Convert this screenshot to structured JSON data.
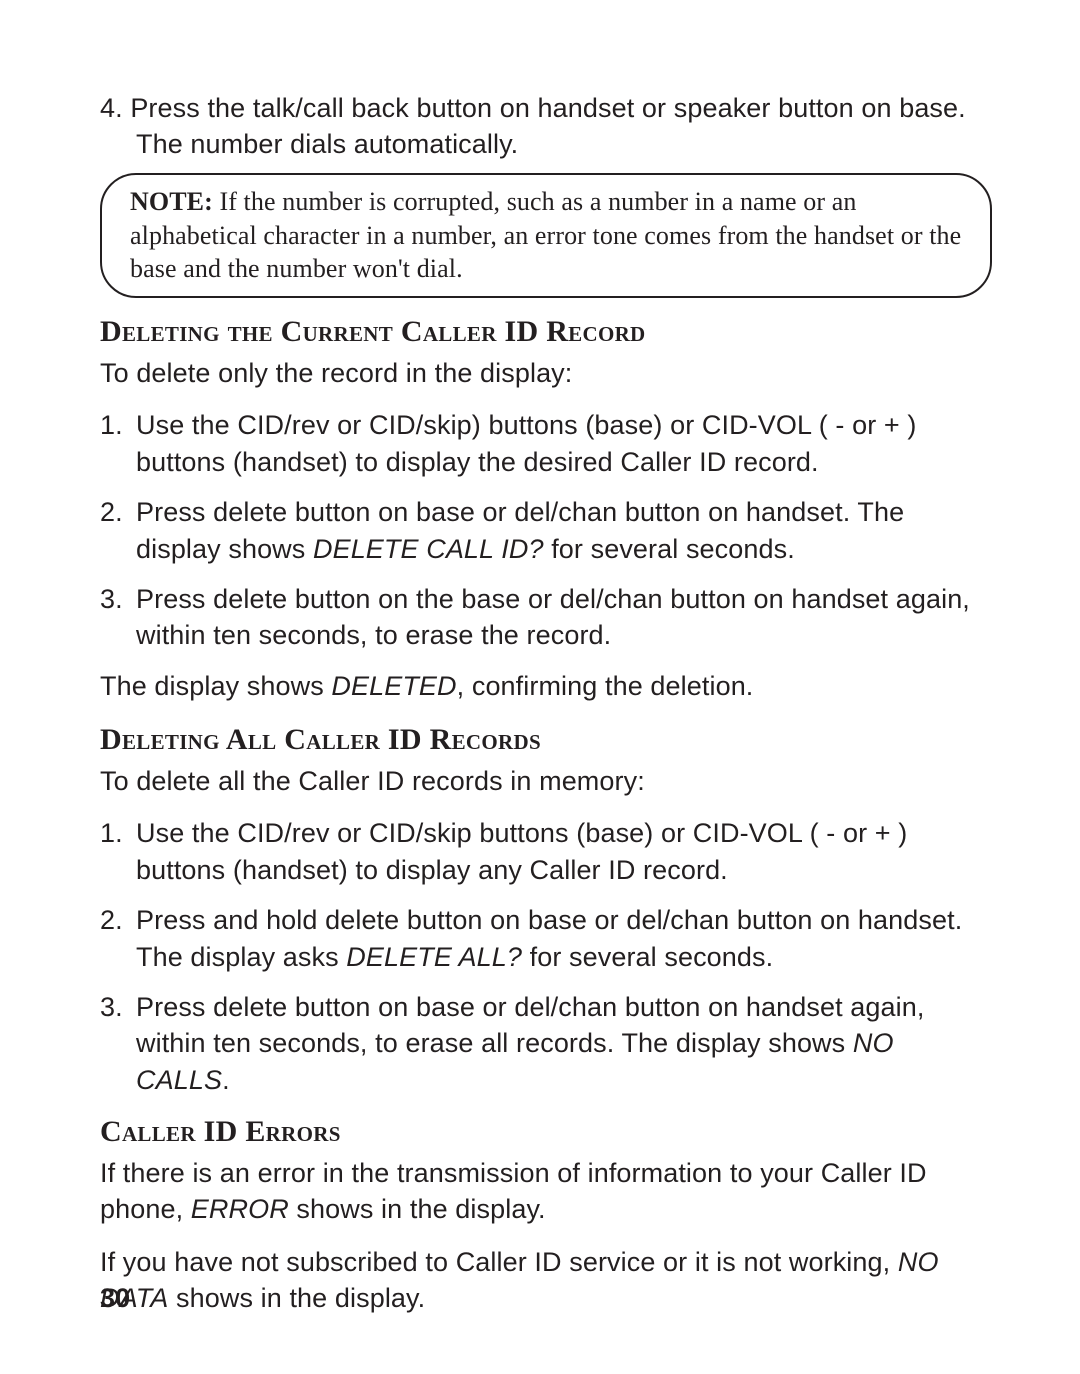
{
  "step4": {
    "num": "4.",
    "text": "Press the talk/call back button on handset or speaker button on base. The number dials automatically."
  },
  "note": {
    "label": "NOTE:",
    "text": " If the number is corrupted, such as a number in a name or an alphabetical character in a number, an error tone comes from the handset or the base and the number won't dial."
  },
  "sec1": {
    "heading": "Deleting the Current Caller ID Record",
    "intro": "To delete only the record in the display:",
    "s1": "Use the CID/rev or CID/skip) buttons (base) or CID-VOL ( - or + ) buttons (handset) to display the desired Caller ID record.",
    "s2a": "Press delete button on base or del/chan button on handset. The display shows ",
    "s2b": "DELETE CALL ID?",
    "s2c": " for several seconds.",
    "s3": "Press delete button on the base or del/chan button on handset again, within ten seconds, to erase the record.",
    "outro_a": "The display shows ",
    "outro_b": "DELETED",
    "outro_c": ", confirming the deletion."
  },
  "sec2": {
    "heading": "Deleting All Caller ID Records",
    "intro": "To delete all the Caller ID records in memory:",
    "s1": "Use the CID/rev or CID/skip buttons (base) or CID-VOL ( - or + ) buttons (handset) to display any Caller ID record.",
    "s2a": "Press and hold delete button on base or del/chan button on handset. The display asks ",
    "s2b": "DELETE ALL?",
    "s2c": " for several seconds.",
    "s3a": "Press delete button on base or del/chan button on handset again, within ten seconds, to erase all records. The display shows ",
    "s3b": "NO CALLS",
    "s3c": "."
  },
  "sec3": {
    "heading": "Caller ID Errors",
    "p1a": "If there is an error in the transmission of information to your Caller ID phone, ",
    "p1b": "ERROR",
    "p1c": " shows in the display.",
    "p2a": "If you have not subscribed to Caller ID service or it is not working, ",
    "p2b": "NO DATA",
    "p2c": " shows in the display."
  },
  "pagenum": "30"
}
